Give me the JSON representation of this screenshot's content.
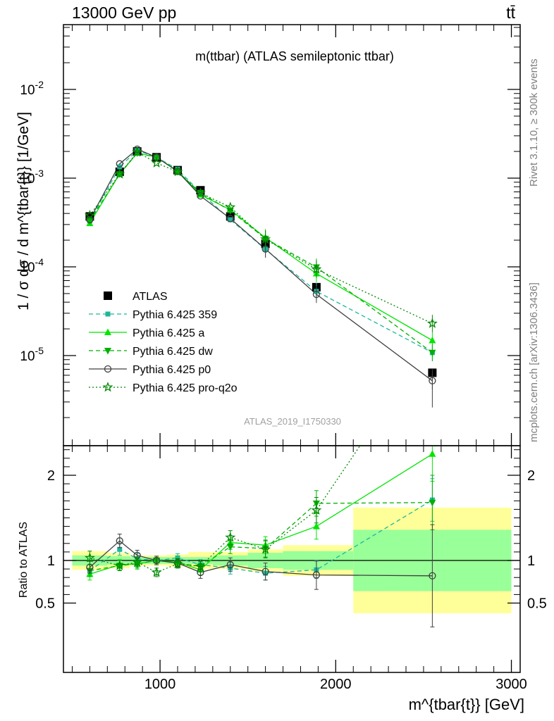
{
  "header": {
    "left_label": "13000 GeV pp",
    "right_label": "tt̄"
  },
  "side": {
    "rivet_label": "Rivet 3.1.10, ≥ 300k events",
    "mcplots_label": "mcplots.cern.ch [arXiv:1306.3436]"
  },
  "chart_data": [
    {
      "type": "line",
      "panel": "main",
      "title": "m(ttbar) (ATLAS semileptonic ttbar)",
      "watermark": "ATLAS_2019_I1750330",
      "ylabel": "1 / σ dσ / d m^{tbar{t}} [1/GeV]",
      "yscale": "log",
      "ylim": [
        1e-06,
        0.05
      ],
      "xlim": [
        450,
        3050
      ],
      "y_tick_labels": [
        "10^{-2}",
        "10^{-3}",
        "10^{-4}",
        "10^{-5}"
      ],
      "legend_position": "middle-left",
      "series": [
        {
          "name": "ATLAS",
          "color": "#000000",
          "marker": "square",
          "dash": "none",
          "x": [
            600,
            770,
            870,
            980,
            1100,
            1230,
            1400,
            1600,
            1890,
            2550
          ],
          "y": [
            0.00037,
            0.00118,
            0.002,
            0.00172,
            0.00123,
            0.00073,
            0.00037,
            0.000182,
            5.9e-05,
            6.4e-06
          ]
        },
        {
          "name": "Pythia 6.425 359",
          "color": "#1db79a",
          "marker": "square-small",
          "dash": "6,4",
          "x": [
            600,
            770,
            870,
            980,
            1100,
            1230,
            1400,
            1600,
            1890,
            2550
          ],
          "y": [
            0.00033,
            0.00134,
            0.00205,
            0.00172,
            0.00126,
            0.00069,
            0.00034,
            0.000158,
            5.3e-05,
            1.08e-05
          ]
        },
        {
          "name": "Pythia 6.425 a",
          "color": "#00e600",
          "marker": "triangle-up",
          "dash": "none",
          "x": [
            600,
            770,
            870,
            980,
            1100,
            1230,
            1400,
            1600,
            1890,
            2550
          ],
          "y": [
            0.00031,
            0.00112,
            0.00192,
            0.00172,
            0.00121,
            0.00065,
            0.00044,
            0.000213,
            8.4e-05,
            1.48e-05
          ]
        },
        {
          "name": "Pythia 6.425 dw",
          "color": "#00b000",
          "marker": "triangle-down",
          "dash": "6,4",
          "x": [
            600,
            770,
            870,
            980,
            1100,
            1230,
            1400,
            1600,
            1890,
            2550
          ],
          "y": [
            0.00033,
            0.00111,
            0.00192,
            0.00172,
            0.00119,
            0.00068,
            0.00043,
            0.000208,
            9.9e-05,
            1.08e-05
          ]
        },
        {
          "name": "Pythia 6.425 p0",
          "color": "#404040",
          "marker": "circle-open",
          "dash": "none",
          "x": [
            600,
            770,
            870,
            980,
            1100,
            1230,
            1400,
            1600,
            1890,
            2550
          ],
          "y": [
            0.00034,
            0.00145,
            0.00212,
            0.00172,
            0.00119,
            0.00063,
            0.00035,
            0.000159,
            4.9e-05,
            5.2e-06
          ]
        },
        {
          "name": "Pythia 6.425 pro-q2o",
          "color": "#008800",
          "marker": "star-open",
          "dash": "2,3",
          "x": [
            600,
            770,
            870,
            980,
            1100,
            1230,
            1400,
            1600,
            1890,
            2550
          ],
          "y": [
            0.00038,
            0.00111,
            0.00197,
            0.00148,
            0.00118,
            0.00068,
            0.00047,
            0.000205,
            9.4e-05,
            2.3e-05
          ]
        }
      ]
    },
    {
      "type": "line",
      "panel": "ratio",
      "xlabel": "m^{tbar{t}} [GeV]",
      "ylabel": "Ratio to ATLAS",
      "ylim": [
        0.43,
        2.4
      ],
      "xlim": [
        450,
        3050
      ],
      "y_ticks": [
        0.5,
        1,
        2
      ],
      "y_tick_labels": [
        "0.5",
        "1",
        "2"
      ],
      "x_ticks": [
        1000,
        2000,
        3000
      ],
      "x_tick_labels": [
        "1000",
        "2000",
        "3000"
      ],
      "bins": [
        {
          "lo": 500,
          "hi": 700,
          "stat": 0.06,
          "total": 0.11
        },
        {
          "lo": 700,
          "hi": 830,
          "stat": 0.05,
          "total": 0.09
        },
        {
          "lo": 830,
          "hi": 920,
          "stat": 0.04,
          "total": 0.06
        },
        {
          "lo": 920,
          "hi": 1040,
          "stat": 0.04,
          "total": 0.06
        },
        {
          "lo": 1040,
          "hi": 1160,
          "stat": 0.04,
          "total": 0.07
        },
        {
          "lo": 1160,
          "hi": 1300,
          "stat": 0.04,
          "total": 0.1
        },
        {
          "lo": 1300,
          "hi": 1500,
          "stat": 0.06,
          "total": 0.1
        },
        {
          "lo": 1500,
          "hi": 1700,
          "stat": 0.09,
          "total": 0.13
        },
        {
          "lo": 1700,
          "hi": 2100,
          "stat": 0.11,
          "total": 0.18
        },
        {
          "lo": 2100,
          "hi": 3000,
          "stat": 0.36,
          "total": 0.62
        }
      ],
      "series": [
        {
          "name": "Pythia 6.425 359",
          "x": [
            600,
            770,
            870,
            980,
            1100,
            1230,
            1400,
            1600,
            1890,
            2550
          ],
          "y": [
            0.88,
            1.13,
            1.02,
            1.0,
            1.03,
            0.95,
            0.91,
            0.85,
            0.89,
            1.71
          ],
          "err": [
            0.07,
            0.07,
            0.06,
            0.05,
            0.05,
            0.06,
            0.07,
            0.08,
            0.1,
            0.25
          ]
        },
        {
          "name": "Pythia 6.425 a",
          "x": [
            600,
            770,
            870,
            980,
            1100,
            1230,
            1400,
            1600,
            1890,
            2550
          ],
          "y": [
            0.84,
            0.95,
            0.96,
            1.0,
            0.98,
            0.89,
            1.21,
            1.18,
            1.4,
            2.25
          ],
          "err": [
            0.07,
            0.06,
            0.06,
            0.05,
            0.05,
            0.06,
            0.08,
            0.1,
            0.15,
            0.32
          ]
        },
        {
          "name": "Pythia 6.425 dw",
          "x": [
            600,
            770,
            870,
            980,
            1100,
            1230,
            1400,
            1600,
            1890,
            2550
          ],
          "y": [
            0.88,
            0.94,
            0.96,
            1.0,
            0.97,
            0.93,
            1.16,
            1.14,
            1.67,
            1.68
          ],
          "err": [
            0.07,
            0.06,
            0.06,
            0.05,
            0.05,
            0.06,
            0.08,
            0.1,
            0.15,
            0.32
          ]
        },
        {
          "name": "Pythia 6.425 p0",
          "x": [
            600,
            770,
            870,
            980,
            1100,
            1230,
            1400,
            1600,
            1890,
            2550
          ],
          "y": [
            0.92,
            1.23,
            1.06,
            1.0,
            0.97,
            0.86,
            0.95,
            0.87,
            0.83,
            0.82
          ],
          "err": [
            0.07,
            0.08,
            0.06,
            0.05,
            0.05,
            0.07,
            0.08,
            0.1,
            0.17,
            0.6
          ]
        },
        {
          "name": "Pythia 6.425 pro-q2o",
          "x": [
            600,
            770,
            870,
            980,
            1100,
            1230,
            1400,
            1600,
            1890,
            2550
          ],
          "y": [
            1.03,
            0.94,
            0.98,
            0.86,
            0.96,
            0.93,
            1.27,
            1.13,
            1.59,
            3.6
          ],
          "err": [
            0.08,
            0.06,
            0.06,
            0.05,
            0.05,
            0.06,
            0.08,
            0.1,
            0.15,
            0.4
          ]
        }
      ]
    }
  ]
}
